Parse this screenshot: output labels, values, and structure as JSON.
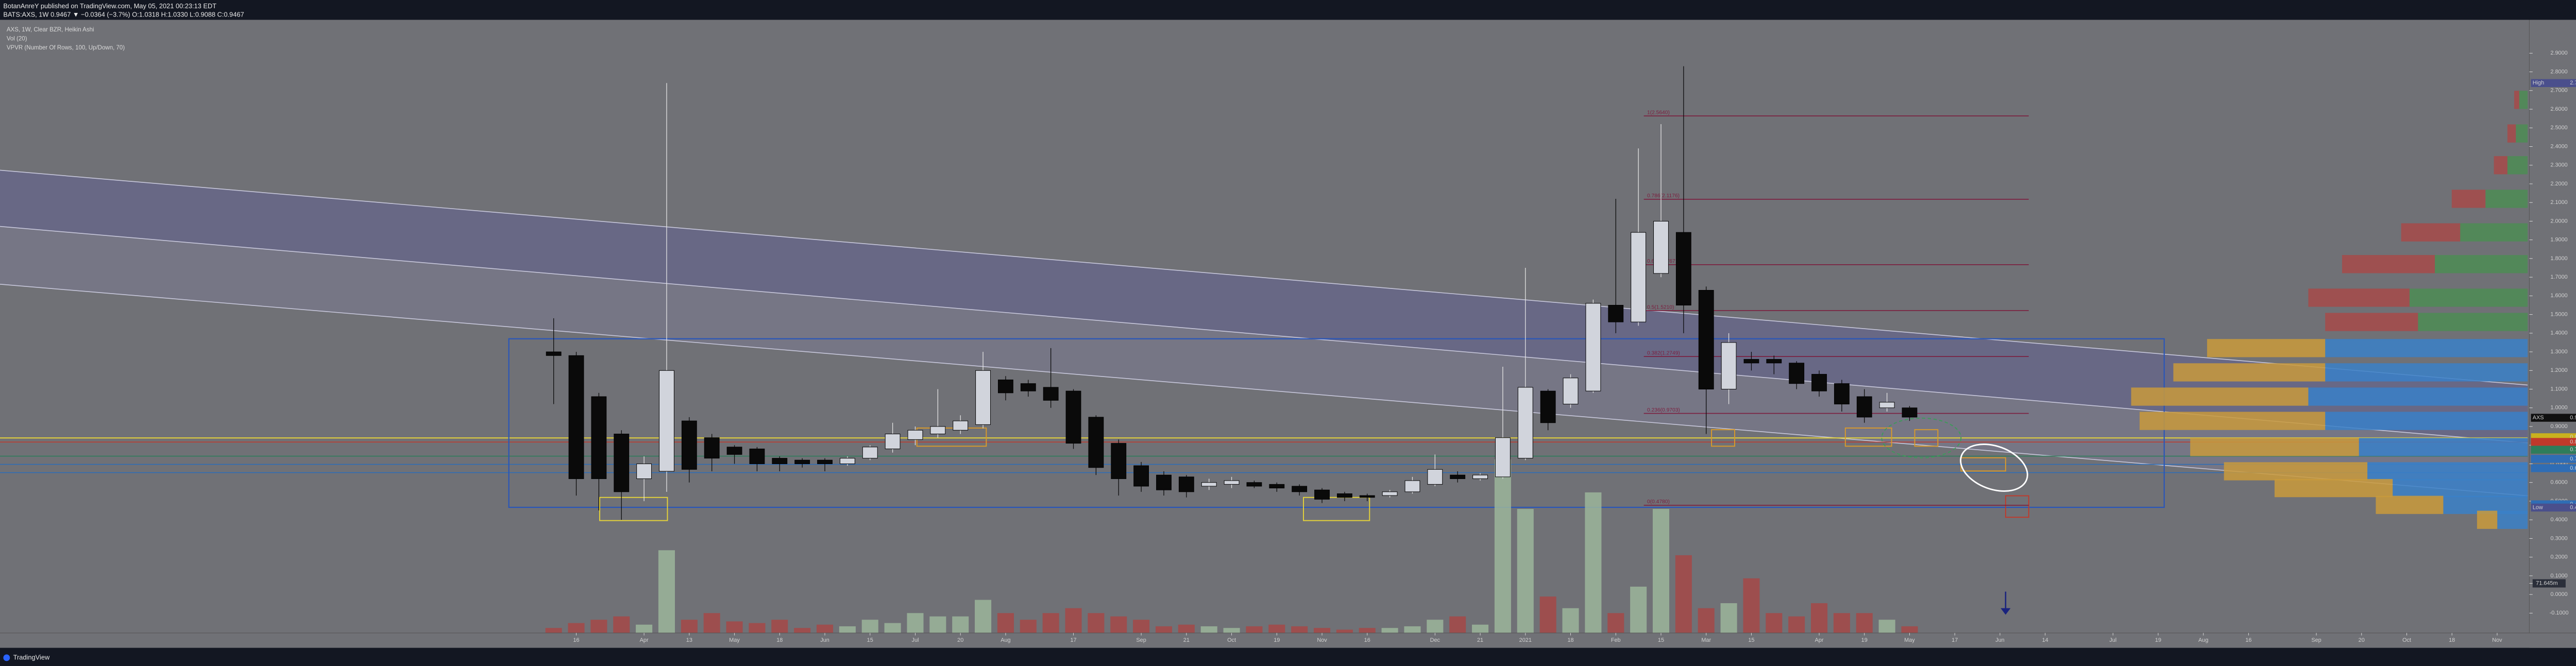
{
  "header": {
    "publisher": "BotanAnreY published on TradingView.com, May 05, 2021 00:23:13 EDT",
    "symbol_line": "BATS:AXS, 1W  0.9467 ▼ −0.0364 (−3.7%)  O:1.0318  H:1.0330  L:0.9088  C:0.9467"
  },
  "footer": {
    "brand": "TradingView"
  },
  "chart_data": {
    "type": "candlestick",
    "title": "AXS, 1W, Clear BZR, Heikin Ashi",
    "indicators": [
      "Vol (20)",
      "VPVR (Number Of Rows, 100, Up/Down, 70)"
    ],
    "up_color": "#d1d4dc",
    "down_color": "#0a0a0a",
    "open": [
      1.3,
      1.28,
      1.06,
      0.86,
      0.62,
      0.66,
      0.93,
      0.84,
      0.79,
      0.78,
      0.73,
      0.72,
      0.72,
      0.7,
      0.73,
      0.78,
      0.83,
      0.86,
      0.88,
      0.91,
      1.15,
      1.13,
      1.11,
      1.09,
      0.95,
      0.81,
      0.69,
      0.64,
      0.63,
      0.58,
      0.59,
      0.6,
      0.59,
      0.58,
      0.56,
      0.54,
      0.53,
      0.53,
      0.55,
      0.59,
      0.64,
      0.62,
      0.63,
      0.73,
      1.09,
      1.02,
      1.09,
      1.55,
      1.46,
      1.72,
      1.94,
      1.63,
      1.1,
      1.26,
      1.26,
      1.24,
      1.18,
      1.13,
      1.06,
      1.0,
      1.0
    ],
    "high": [
      1.48,
      1.3,
      1.08,
      0.88,
      0.74,
      2.74,
      0.95,
      0.86,
      0.8,
      0.79,
      0.74,
      0.73,
      0.73,
      0.74,
      0.8,
      0.92,
      0.9,
      1.1,
      0.96,
      1.3,
      1.17,
      1.15,
      1.32,
      1.1,
      0.96,
      0.83,
      0.71,
      0.66,
      0.64,
      0.62,
      0.63,
      0.61,
      0.6,
      0.59,
      0.57,
      0.55,
      0.54,
      0.56,
      0.63,
      0.75,
      0.66,
      0.65,
      1.22,
      1.75,
      1.1,
      1.18,
      1.58,
      2.12,
      2.39,
      2.52,
      2.83,
      1.65,
      1.4,
      1.3,
      1.28,
      1.25,
      1.2,
      1.15,
      1.1,
      1.08,
      1.01
    ],
    "low": [
      1.02,
      0.53,
      0.45,
      0.4,
      0.5,
      0.55,
      0.6,
      0.66,
      0.7,
      0.66,
      0.66,
      0.68,
      0.66,
      0.69,
      0.72,
      0.76,
      0.8,
      0.84,
      0.86,
      0.89,
      1.04,
      1.06,
      1.0,
      0.78,
      0.64,
      0.53,
      0.55,
      0.53,
      0.52,
      0.56,
      0.57,
      0.57,
      0.55,
      0.53,
      0.49,
      0.5,
      0.5,
      0.52,
      0.54,
      0.58,
      0.6,
      0.61,
      0.62,
      0.72,
      0.88,
      1.0,
      1.08,
      1.4,
      1.44,
      1.7,
      1.4,
      0.86,
      1.02,
      1.2,
      1.18,
      1.1,
      1.06,
      0.98,
      0.92,
      0.98,
      0.93
    ],
    "close": [
      1.28,
      0.62,
      0.62,
      0.55,
      0.7,
      1.2,
      0.67,
      0.73,
      0.75,
      0.7,
      0.7,
      0.7,
      0.7,
      0.73,
      0.79,
      0.86,
      0.88,
      0.9,
      0.93,
      1.2,
      1.08,
      1.09,
      1.04,
      0.81,
      0.68,
      0.62,
      0.58,
      0.56,
      0.55,
      0.6,
      0.61,
      0.58,
      0.57,
      0.55,
      0.51,
      0.52,
      0.52,
      0.55,
      0.61,
      0.67,
      0.62,
      0.64,
      0.84,
      1.11,
      0.92,
      1.16,
      1.56,
      1.46,
      1.94,
      2.0,
      1.55,
      1.1,
      1.35,
      1.24,
      1.24,
      1.13,
      1.09,
      1.02,
      0.95,
      1.03,
      0.95
    ],
    "volume": [
      7.2,
      14.3,
      19.1,
      23.9,
      12,
      119.5,
      19.1,
      28.7,
      16.7,
      14.3,
      19.1,
      7.2,
      12,
      9.6,
      19.1,
      14.3,
      28.7,
      23.9,
      23.9,
      47.8,
      28.7,
      19.1,
      28.7,
      35.8,
      28.7,
      23.9,
      19.1,
      9.6,
      12,
      9.6,
      7.2,
      9.6,
      12,
      9.6,
      7.2,
      4.8,
      7.2,
      7.2,
      9.6,
      19.1,
      23.9,
      12,
      250.9,
      179.2,
      52.6,
      35.8,
      203.1,
      28.7,
      66.9,
      179.2,
      112.3,
      35.8,
      43,
      78.9,
      28.7,
      23.9,
      43,
      28.7,
      28.7,
      19.1,
      9.6
    ],
    "volume_colors": {
      "up": "#9bb59b",
      "down": "#a44848"
    },
    "vol_ylim": [
      0,
      293.7
    ],
    "vol_ticks": [
      {
        "value": 71.645,
        "label": "71.645m"
      }
    ],
    "xlim": [
      -24.5,
      87.35
    ],
    "xticks": [
      {
        "value": 1,
        "label": "16"
      },
      {
        "value": 4,
        "label": "Apr"
      },
      {
        "value": 6,
        "label": "13"
      },
      {
        "value": 8,
        "label": "May"
      },
      {
        "value": 10,
        "label": "18"
      },
      {
        "value": 12,
        "label": "Jun"
      },
      {
        "value": 14,
        "label": "15"
      },
      {
        "value": 16,
        "label": "Jul"
      },
      {
        "value": 18,
        "label": "20"
      },
      {
        "value": 20,
        "label": "Aug"
      },
      {
        "value": 23,
        "label": "17"
      },
      {
        "value": 26,
        "label": "Sep"
      },
      {
        "value": 28,
        "label": "21"
      },
      {
        "value": 30,
        "label": "Oct"
      },
      {
        "value": 32,
        "label": "19"
      },
      {
        "value": 34,
        "label": "Nov"
      },
      {
        "value": 36,
        "label": "16"
      },
      {
        "value": 39,
        "label": "Dec"
      },
      {
        "value": 41,
        "label": "21"
      },
      {
        "value": 43,
        "label": "2021"
      },
      {
        "value": 45,
        "label": "18"
      },
      {
        "value": 47,
        "label": "Feb"
      },
      {
        "value": 49,
        "label": "15"
      },
      {
        "value": 51,
        "label": "Mar"
      },
      {
        "value": 53,
        "label": "15"
      },
      {
        "value": 56,
        "label": "Apr"
      },
      {
        "value": 58,
        "label": "19"
      },
      {
        "value": 60,
        "label": "May"
      },
      {
        "value": 62,
        "label": "17"
      },
      {
        "value": 64,
        "label": "Jun"
      },
      {
        "value": 66,
        "label": "14"
      },
      {
        "value": 69,
        "label": "Jul"
      },
      {
        "value": 71,
        "label": "19"
      },
      {
        "value": 73,
        "label": "Aug"
      },
      {
        "value": 75,
        "label": "16"
      },
      {
        "value": 78,
        "label": "Sep"
      },
      {
        "value": 80,
        "label": "20"
      },
      {
        "value": 82,
        "label": "Oct"
      },
      {
        "value": 84,
        "label": "18"
      },
      {
        "value": 86,
        "label": "Nov"
      }
    ],
    "ylim": [
      -0.2,
      3.07
    ],
    "yticks": [
      {
        "value": 2.9,
        "label": "2.9000"
      },
      {
        "value": 2.8,
        "label": "2.8000"
      },
      {
        "value": 2.7,
        "label": "2.7000"
      },
      {
        "value": 2.6,
        "label": "2.6000"
      },
      {
        "value": 2.5,
        "label": "2.5000"
      },
      {
        "value": 2.4,
        "label": "2.4000"
      },
      {
        "value": 2.3,
        "label": "2.3000"
      },
      {
        "value": 2.2,
        "label": "2.2000"
      },
      {
        "value": 2.1,
        "label": "2.1000"
      },
      {
        "value": 2.0,
        "label": "2.0000"
      },
      {
        "value": 1.9,
        "label": "1.9000"
      },
      {
        "value": 1.8,
        "label": "1.8000"
      },
      {
        "value": 1.7,
        "label": "1.7000"
      },
      {
        "value": 1.6,
        "label": "1.6000"
      },
      {
        "value": 1.5,
        "label": "1.5000"
      },
      {
        "value": 1.4,
        "label": "1.4000"
      },
      {
        "value": 1.3,
        "label": "1.3000"
      },
      {
        "value": 1.2,
        "label": "1.2000"
      },
      {
        "value": 1.1,
        "label": "1.1000"
      },
      {
        "value": 1.0,
        "label": "1.0000"
      },
      {
        "value": 0.9,
        "label": "0.9000"
      },
      {
        "value": 0.8,
        "label": "0.8000"
      },
      {
        "value": 0.7,
        "label": "0.7000"
      },
      {
        "value": 0.6,
        "label": "0.6000"
      },
      {
        "value": 0.5,
        "label": "0.5000"
      },
      {
        "value": 0.4,
        "label": "0.4000"
      },
      {
        "value": 0.3,
        "label": "0.3000"
      },
      {
        "value": 0.2,
        "label": "0.2000"
      },
      {
        "value": 0.1,
        "label": "0.1000"
      },
      {
        "value": 0,
        "label": "0.0000"
      },
      {
        "value": -0.1,
        "label": "-0.1000"
      }
    ],
    "fib_levels": [
      {
        "value": 2.564,
        "label": "1(2.5640)"
      },
      {
        "value": 2.1176,
        "label": "0.786(2.1176)"
      },
      {
        "value": 1.7671,
        "label": "0.618(1.7671)"
      },
      {
        "value": 1.521,
        "label": "0.5(1.5210)"
      },
      {
        "value": 1.2749,
        "label": "0.382(1.2749)"
      },
      {
        "value": 0.9703,
        "label": "0.236(0.9703)"
      },
      {
        "value": 0.478,
        "label": "0(0.4780)"
      }
    ],
    "fib_color": "#7c1d3e",
    "price_tags": [
      {
        "name": "High",
        "value": 2.74,
        "label": "2.7400",
        "color": "#4a4f8c"
      },
      {
        "name": "AXS",
        "value": 0.9467,
        "label": "0.9467",
        "color": "#101010"
      },
      {
        "value": 0.8424,
        "label": "0.8424",
        "color": "#c9b11e"
      },
      {
        "value": 0.8172,
        "label": "0.8172",
        "color": "#c0392b"
      },
      {
        "value": 0.7756,
        "label": "0.7756",
        "color": "#2e7d5b"
      },
      {
        "value": 0.7264,
        "label": "0.7264",
        "color": "#2f6db5"
      },
      {
        "value": 0.6767,
        "label": "0.6767",
        "color": "#2f6db5"
      },
      {
        "value": 0.4829,
        "label": "0.4829",
        "color": "#2f6db5"
      },
      {
        "name": "Low",
        "value": 0.4656,
        "label": "0.4656",
        "color": "#4a4f8c"
      }
    ],
    "vpvr": {
      "prices": [
        2.65,
        2.47,
        2.3,
        2.12,
        1.94,
        1.77,
        1.59,
        1.46,
        1.32,
        1.19,
        1.06,
        0.93,
        0.79,
        0.66,
        0.57,
        0.48,
        0.4
      ],
      "up": [
        5,
        7,
        12,
        25,
        40,
        55,
        70,
        65,
        120,
        120,
        130,
        120,
        100,
        95,
        80,
        50,
        18
      ],
      "down": [
        3,
        5,
        8,
        20,
        35,
        55,
        60,
        55,
        70,
        90,
        105,
        110,
        100,
        85,
        70,
        40,
        12
      ],
      "up_colors": [
        "#4c8c55",
        "#4c8c55",
        "#4c8c55",
        "#4c8c55",
        "#4c8c55",
        "#4c8c55",
        "#4c8c55",
        "#4c8c55",
        "#3a80c8",
        "#3a80c8",
        "#3a80c8",
        "#3a80c8",
        "#3a80c8",
        "#3a80c8",
        "#3a80c8",
        "#3a80c8",
        "#3a80c8"
      ],
      "down_colors": [
        "#a64a4a",
        "#a64a4a",
        "#a64a4a",
        "#a64a4a",
        "#a64a4a",
        "#a64a4a",
        "#a64a4a",
        "#a64a4a",
        "#c99a3c",
        "#c99a3c",
        "#c99a3c",
        "#c99a3c",
        "#c99a3c",
        "#c99a3c",
        "#c99a3c",
        "#c99a3c",
        "#c99a3c"
      ]
    }
  }
}
